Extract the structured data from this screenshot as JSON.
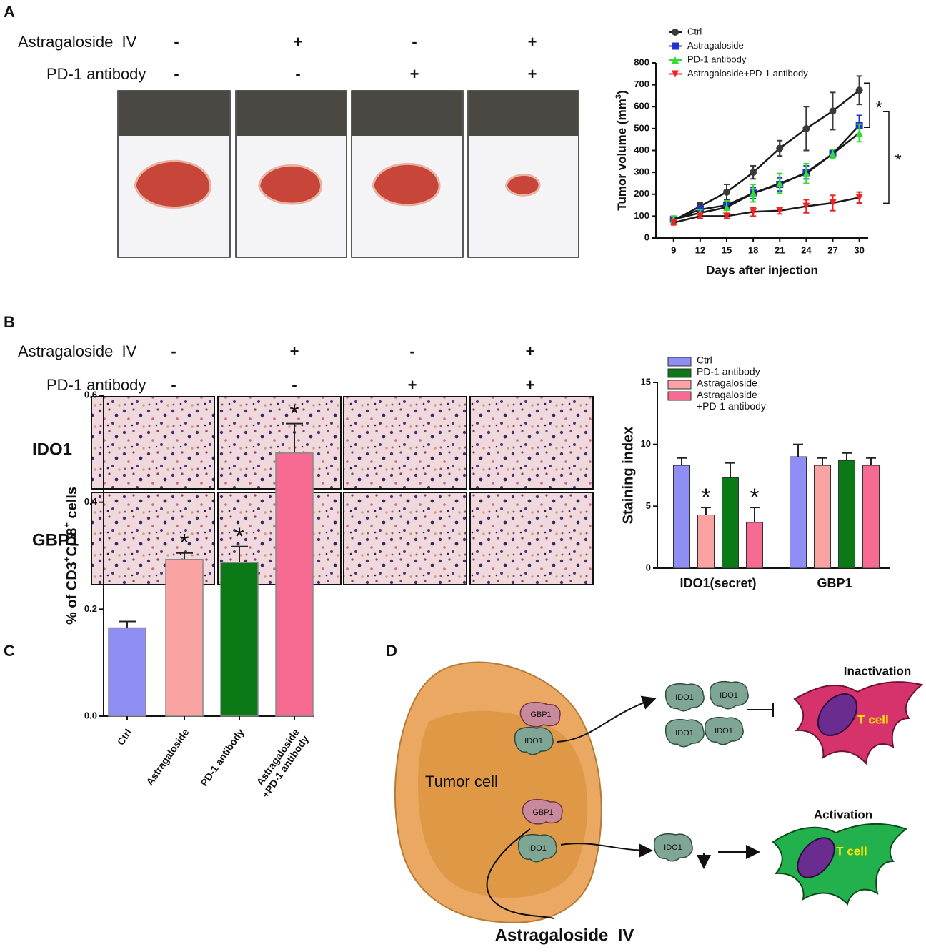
{
  "panel_labels": [
    "A",
    "B",
    "C",
    "D"
  ],
  "panel_a": {
    "treatments": [
      {
        "label": "Astragaloside  IV",
        "signs": [
          "-",
          "+",
          "-",
          "+"
        ]
      },
      {
        "label": "PD-1 antibody",
        "signs": [
          "-",
          "-",
          "+",
          "+"
        ]
      }
    ]
  },
  "panel_b": {
    "treatments": [
      {
        "label": "Astragaloside  IV",
        "signs": [
          "-",
          "+",
          "-",
          "+"
        ]
      },
      {
        "label": "PD-1 antibody",
        "signs": [
          "-",
          "-",
          "+",
          "+"
        ]
      }
    ],
    "rows": [
      "IDO1",
      "GBP1"
    ]
  },
  "chart_data": [
    {
      "type": "line",
      "xlabel": "Days after injection",
      "ylabel": [
        "Tumor volume (mm",
        "3",
        ")"
      ],
      "x": [
        9,
        12,
        15,
        18,
        21,
        24,
        27,
        30
      ],
      "xlim": [
        7,
        31
      ],
      "xticks": [
        9,
        12,
        15,
        18,
        21,
        24,
        27,
        30
      ],
      "ylim": [
        0,
        800
      ],
      "yticks": [
        0,
        100,
        200,
        300,
        400,
        500,
        600,
        700,
        800
      ],
      "line_color": "#1a1a1a",
      "series": [
        {
          "name": "Ctrl",
          "color": "#3a3a3a",
          "marker": "circle",
          "values": [
            80,
            145,
            210,
            300,
            410,
            500,
            580,
            675
          ],
          "errors": [
            15,
            15,
            35,
            30,
            35,
            100,
            85,
            65
          ]
        },
        {
          "name": "Astragaloside",
          "color": "#2233cc",
          "marker": "square",
          "values": [
            85,
            130,
            150,
            205,
            245,
            300,
            385,
            515
          ],
          "errors": [
            15,
            15,
            20,
            25,
            30,
            30,
            15,
            45
          ]
        },
        {
          "name": "PD-1 antibody",
          "color": "#33dd33",
          "marker": "triangle",
          "values": [
            85,
            115,
            140,
            205,
            250,
            295,
            385,
            480
          ],
          "errors": [
            15,
            15,
            30,
            40,
            45,
            45,
            20,
            40
          ]
        },
        {
          "name": "Astragaloside+PD-1 antibody",
          "color": "#ee2222",
          "marker": "triangle-down",
          "values": [
            70,
            100,
            100,
            120,
            125,
            145,
            160,
            185
          ],
          "errors": [
            10,
            10,
            10,
            20,
            15,
            30,
            35,
            25
          ]
        }
      ],
      "annotations": [
        {
          "text": "*",
          "between": [
            0,
            1
          ]
        },
        {
          "text": "*",
          "between": [
            0,
            3
          ]
        }
      ]
    },
    {
      "type": "grouped_bar",
      "categories": [
        "IDO1(secret)",
        "GBP1"
      ],
      "ylabel": "Staining index",
      "ylim": [
        0,
        15
      ],
      "yticks": [
        0,
        5,
        10,
        15
      ],
      "legend_order": [
        0,
        2,
        1,
        3
      ],
      "series": [
        {
          "name": "Ctrl",
          "color": "#8e8ef5",
          "values": [
            8.3,
            9.0
          ],
          "errors": [
            0.6,
            1.0
          ],
          "significance": [
            null,
            null
          ]
        },
        {
          "name": "Astragaloside",
          "color": "#f9a3a3",
          "values": [
            4.3,
            8.3
          ],
          "errors": [
            0.6,
            0.6
          ],
          "significance": [
            "*",
            null
          ]
        },
        {
          "name": "PD-1 antibody",
          "color": "#0b7a16",
          "values": [
            7.3,
            8.7
          ],
          "errors": [
            1.2,
            0.6
          ],
          "significance": [
            null,
            null
          ]
        },
        {
          "name": "Astragaloside\n+PD-1 antibody",
          "color": "#f76b92",
          "values": [
            3.7,
            8.3
          ],
          "errors": [
            1.2,
            0.6
          ],
          "significance": [
            "*",
            null
          ]
        }
      ]
    },
    {
      "type": "bar",
      "categories": [
        "Ctrl",
        "Astragaloside",
        "PD-1 antibody",
        "Astragaloside\n+PD-1 antibody"
      ],
      "colors": [
        "#8e8ef5",
        "#f9a3a3",
        "#0b7a16",
        "#f76b92"
      ],
      "values": [
        0.165,
        0.293,
        0.287,
        0.492
      ],
      "errors": [
        0.012,
        0.012,
        0.03,
        0.055
      ],
      "significance": [
        null,
        "*",
        "*",
        "*"
      ],
      "ylabel": [
        "% of CD3",
        "+",
        "CD8",
        "+",
        " cells"
      ],
      "ylim": [
        0,
        0.6
      ],
      "yticks": [
        {
          "value": 0,
          "label": "0.0"
        },
        0.2,
        0.4,
        0.6
      ]
    }
  ],
  "diagram": {
    "tumor": "Tumor cell",
    "gbp1": "GBP1",
    "ido1": "IDO1",
    "inactivation": "Inactivation",
    "activation": "Activation",
    "tcell": "T cell",
    "drug": "Astragaloside  IV"
  }
}
